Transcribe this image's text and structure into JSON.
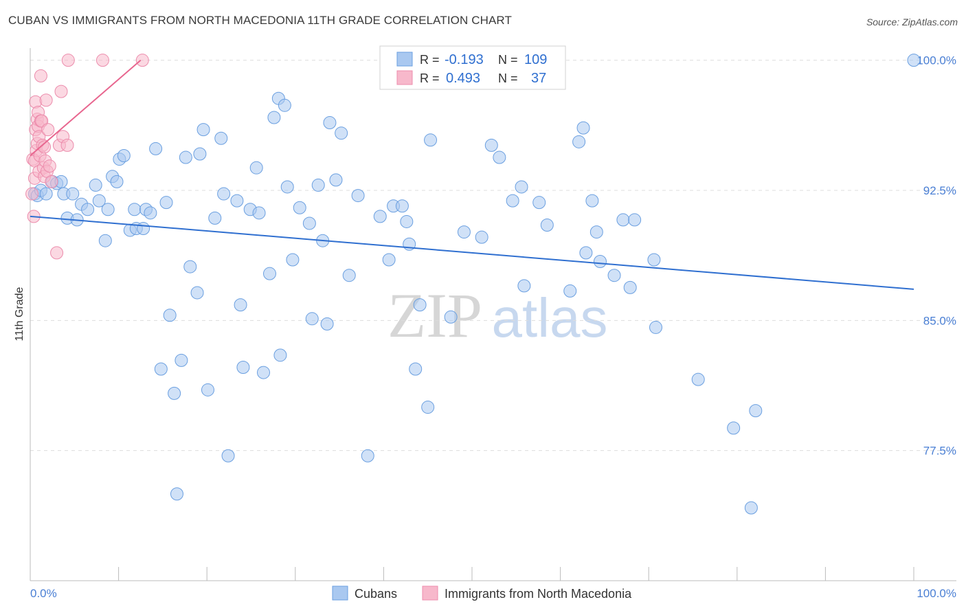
{
  "header": {
    "title": "CUBAN VS IMMIGRANTS FROM NORTH MACEDONIA 11TH GRADE CORRELATION CHART",
    "source": "Source: ZipAtlas.com"
  },
  "watermark": {
    "left": "ZIP",
    "right": "atlas"
  },
  "colors": {
    "blue_fill": "#a9c8f0",
    "blue_stroke": "#6a9fe0",
    "blue_line": "#2f6fd0",
    "pink_fill": "#f7b8cb",
    "pink_stroke": "#ec8cac",
    "pink_line": "#e8668f",
    "tick_text": "#4a7fd4",
    "grid": "#dddddd"
  },
  "legend_top": {
    "rows": [
      {
        "r_label": "R =",
        "r_value": "-0.193",
        "n_label": "N =",
        "n_value": "109"
      },
      {
        "r_label": "R =",
        "r_value": "0.493",
        "n_label": "N =",
        "n_value": "37"
      }
    ]
  },
  "legend_bottom": {
    "items": [
      "Cubans",
      "Immigrants from North Macedonia"
    ]
  },
  "chart_data": {
    "type": "scatter",
    "title": "CUBAN VS IMMIGRANTS FROM NORTH MACEDONIA 11TH GRADE CORRELATION CHART",
    "xlabel": "",
    "ylabel": "11th Grade",
    "xlim": [
      0,
      100
    ],
    "ylim": [
      70.0,
      100.7
    ],
    "x_tick_labels": [
      "0.0%",
      "100.0%"
    ],
    "y_ticks": [
      77.5,
      85.0,
      92.5,
      100.0
    ],
    "y_tick_labels": [
      "77.5%",
      "85.0%",
      "92.5%",
      "100.0%"
    ],
    "grid": true,
    "legend_position": "top-center",
    "series": [
      {
        "name": "Cubans",
        "r": -0.193,
        "n": 109,
        "trend": {
          "x": [
            0,
            100
          ],
          "y": [
            91.0,
            86.8
          ]
        },
        "points": [
          [
            0.5,
            92.3
          ],
          [
            0.8,
            92.2
          ],
          [
            1.2,
            92.5
          ],
          [
            1.8,
            92.3
          ],
          [
            2.5,
            93.0
          ],
          [
            3.0,
            92.9
          ],
          [
            3.5,
            93.0
          ],
          [
            3.8,
            92.3
          ],
          [
            4.2,
            90.9
          ],
          [
            4.8,
            92.3
          ],
          [
            5.3,
            90.8
          ],
          [
            5.8,
            91.7
          ],
          [
            6.5,
            91.4
          ],
          [
            7.4,
            92.8
          ],
          [
            7.8,
            91.9
          ],
          [
            8.5,
            89.6
          ],
          [
            8.8,
            91.4
          ],
          [
            9.3,
            93.3
          ],
          [
            9.8,
            93.0
          ],
          [
            10.1,
            94.3
          ],
          [
            10.6,
            94.5
          ],
          [
            11.3,
            90.2
          ],
          [
            11.8,
            91.4
          ],
          [
            12.0,
            90.3
          ],
          [
            12.8,
            90.3
          ],
          [
            13.1,
            91.4
          ],
          [
            13.6,
            91.2
          ],
          [
            14.2,
            94.9
          ],
          [
            14.8,
            82.2
          ],
          [
            15.4,
            91.8
          ],
          [
            15.8,
            85.3
          ],
          [
            16.3,
            80.8
          ],
          [
            16.6,
            75.0
          ],
          [
            17.1,
            82.7
          ],
          [
            17.6,
            94.4
          ],
          [
            18.1,
            88.1
          ],
          [
            18.9,
            86.6
          ],
          [
            19.2,
            94.6
          ],
          [
            19.6,
            96.0
          ],
          [
            20.1,
            81.0
          ],
          [
            20.9,
            90.9
          ],
          [
            21.6,
            95.5
          ],
          [
            21.9,
            92.3
          ],
          [
            22.4,
            77.2
          ],
          [
            23.4,
            91.9
          ],
          [
            23.8,
            85.9
          ],
          [
            24.1,
            82.3
          ],
          [
            24.9,
            91.4
          ],
          [
            25.6,
            93.8
          ],
          [
            25.9,
            91.2
          ],
          [
            26.4,
            82.0
          ],
          [
            27.1,
            87.7
          ],
          [
            27.6,
            96.7
          ],
          [
            28.1,
            97.8
          ],
          [
            28.3,
            83.0
          ],
          [
            28.8,
            97.4
          ],
          [
            29.1,
            92.7
          ],
          [
            29.7,
            88.5
          ],
          [
            30.5,
            91.5
          ],
          [
            31.6,
            90.6
          ],
          [
            31.9,
            85.1
          ],
          [
            32.6,
            92.8
          ],
          [
            33.1,
            89.6
          ],
          [
            33.6,
            84.8
          ],
          [
            33.9,
            96.4
          ],
          [
            34.6,
            93.1
          ],
          [
            35.2,
            95.8
          ],
          [
            36.1,
            87.6
          ],
          [
            37.1,
            92.2
          ],
          [
            38.2,
            77.2
          ],
          [
            39.6,
            91.0
          ],
          [
            40.6,
            88.5
          ],
          [
            41.1,
            91.6
          ],
          [
            42.1,
            91.6
          ],
          [
            42.6,
            90.7
          ],
          [
            42.9,
            89.4
          ],
          [
            43.6,
            82.2
          ],
          [
            44.1,
            85.9
          ],
          [
            45.0,
            80.0
          ],
          [
            45.3,
            95.4
          ],
          [
            47.6,
            85.2
          ],
          [
            49.1,
            90.1
          ],
          [
            51.1,
            89.8
          ],
          [
            52.2,
            95.1
          ],
          [
            53.1,
            94.4
          ],
          [
            54.6,
            91.9
          ],
          [
            55.6,
            92.7
          ],
          [
            55.9,
            87.0
          ],
          [
            57.6,
            91.8
          ],
          [
            58.5,
            90.5
          ],
          [
            61.1,
            86.7
          ],
          [
            62.1,
            95.3
          ],
          [
            62.6,
            96.1
          ],
          [
            62.9,
            88.9
          ],
          [
            63.6,
            91.9
          ],
          [
            64.1,
            90.1
          ],
          [
            64.5,
            88.4
          ],
          [
            66.1,
            87.6
          ],
          [
            67.1,
            90.8
          ],
          [
            67.9,
            86.9
          ],
          [
            68.4,
            90.8
          ],
          [
            70.6,
            88.5
          ],
          [
            70.8,
            84.6
          ],
          [
            75.6,
            81.6
          ],
          [
            79.6,
            78.8
          ],
          [
            81.6,
            74.2
          ],
          [
            82.1,
            79.8
          ],
          [
            100.0,
            100.0
          ]
        ]
      },
      {
        "name": "Immigrants from North Macedonia",
        "r": 0.493,
        "n": 37,
        "trend": {
          "x": [
            0,
            12.5
          ],
          "y": [
            94.5,
            100.0
          ]
        },
        "points": [
          [
            0.2,
            92.3
          ],
          [
            0.3,
            94.3
          ],
          [
            0.4,
            91.0
          ],
          [
            0.5,
            93.2
          ],
          [
            0.5,
            94.2
          ],
          [
            0.6,
            96.0
          ],
          [
            0.6,
            97.6
          ],
          [
            0.7,
            94.8
          ],
          [
            0.8,
            95.2
          ],
          [
            0.8,
            96.6
          ],
          [
            0.9,
            97.0
          ],
          [
            0.9,
            96.2
          ],
          [
            1.0,
            95.6
          ],
          [
            1.0,
            93.6
          ],
          [
            1.1,
            94.5
          ],
          [
            1.2,
            99.1
          ],
          [
            1.2,
            96.5
          ],
          [
            1.3,
            96.5
          ],
          [
            1.4,
            95.1
          ],
          [
            1.5,
            93.8
          ],
          [
            1.6,
            95.0
          ],
          [
            1.6,
            93.3
          ],
          [
            1.7,
            94.2
          ],
          [
            1.8,
            97.7
          ],
          [
            1.9,
            93.6
          ],
          [
            2.0,
            96.0
          ],
          [
            2.2,
            93.9
          ],
          [
            2.4,
            93.0
          ],
          [
            3.0,
            88.9
          ],
          [
            3.3,
            95.1
          ],
          [
            3.5,
            98.2
          ],
          [
            3.7,
            95.6
          ],
          [
            4.2,
            95.1
          ],
          [
            4.3,
            100.0
          ],
          [
            8.2,
            100.0
          ],
          [
            12.7,
            100.0
          ]
        ]
      }
    ]
  }
}
